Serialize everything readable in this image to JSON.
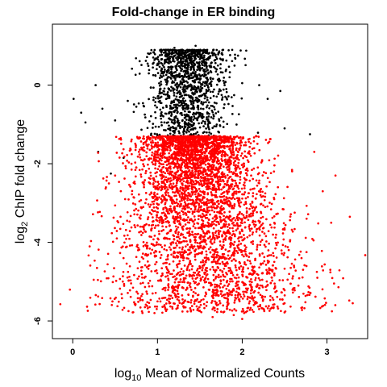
{
  "chart_data": {
    "type": "scatter",
    "title": "Fold-change in ER binding",
    "xlabel": {
      "prefix": "log",
      "sub": "10",
      "rest": " Mean of Normalized Counts"
    },
    "ylabel": {
      "prefix": "log",
      "sub": "2",
      "rest": " ChIP fold change"
    },
    "xlim": [
      -0.24,
      3.48
    ],
    "ylim": [
      -6.45,
      1.55
    ],
    "x_ticks": [
      0,
      1,
      2,
      3
    ],
    "x_tick_labels": [
      "0",
      "1",
      "2",
      "3"
    ],
    "y_ticks": [
      0,
      -2,
      -4,
      -6
    ],
    "y_tick_labels": [
      "0",
      "-2",
      "-4",
      "-6"
    ],
    "grid": false,
    "legend": "none",
    "series": [
      {
        "color": "#000000",
        "description_points": [
          [
            0.01,
            -0.35
          ],
          [
            0.1,
            -0.7
          ],
          [
            0.15,
            -0.95
          ],
          [
            0.27,
            0.0
          ],
          [
            0.35,
            -0.6
          ],
          [
            0.5,
            -0.9
          ],
          [
            0.65,
            -0.4
          ],
          [
            0.75,
            -0.55
          ],
          [
            0.85,
            -0.75
          ],
          [
            0.95,
            0.7
          ],
          [
            1.05,
            0.55
          ],
          [
            1.1,
            0.9
          ],
          [
            1.2,
            0.95
          ],
          [
            1.3,
            0.6
          ],
          [
            1.37,
            0.85
          ],
          [
            1.45,
            1.0
          ],
          [
            1.55,
            0.7
          ],
          [
            1.7,
            0.4
          ],
          [
            1.85,
            0.2
          ],
          [
            2.0,
            0.05
          ],
          [
            2.2,
            0.0
          ],
          [
            2.3,
            -0.35
          ],
          [
            2.45,
            -0.15
          ],
          [
            2.5,
            -1.1
          ],
          [
            2.8,
            -1.25
          ],
          [
            0.45,
            -2.25
          ],
          [
            0.3,
            -1.7
          ],
          [
            0.6,
            -1.85
          ]
        ],
        "cluster": {
          "x_center": 1.36,
          "x_spread": 0.22,
          "y_top": 0.9,
          "y_bottom": -1.3,
          "n": 1300,
          "seed": 7
        }
      },
      {
        "color": "#ff0000",
        "description_points": [
          [
            0.5,
            -2.3
          ],
          [
            0.75,
            -2.1
          ],
          [
            0.9,
            -1.9
          ],
          [
            2.85,
            -1.7
          ],
          [
            2.95,
            -2.7
          ],
          [
            3.1,
            -2.3
          ],
          [
            3.05,
            -3.5
          ],
          [
            3.27,
            -3.35
          ],
          [
            2.7,
            -4.4
          ],
          [
            2.5,
            -5.55
          ],
          [
            2.1,
            -5.1
          ],
          [
            1.5,
            -5.75
          ],
          [
            1.65,
            -5.9
          ],
          [
            1.9,
            -5.85
          ],
          [
            2.0,
            -5.95
          ],
          [
            2.35,
            -4.9
          ],
          [
            1.7,
            -5.6
          ],
          [
            1.2,
            -5.3
          ]
        ],
        "cluster": {
          "x_center": 1.4,
          "x_spread": 0.3,
          "y_top": -1.3,
          "y_bottom": -5.8,
          "n": 4200,
          "seed": 13
        }
      }
    ]
  }
}
